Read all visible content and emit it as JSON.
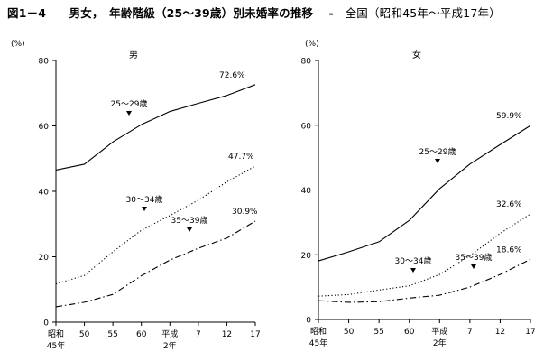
{
  "figure": {
    "title": "図1－4　　男女，　年齢階級（25～39歳）別未婚率の推移　 -　",
    "subtitle": "全国（昭和45年～平成17年）"
  },
  "chart_data": [
    {
      "type": "line",
      "title": "男",
      "ylabel": "(%)",
      "ylim": [
        0,
        80
      ],
      "yticks": [
        0,
        20,
        40,
        60,
        80
      ],
      "xticks": [
        {
          "x": 1970,
          "label": "昭和",
          "label2": "45年"
        },
        {
          "x": 1975,
          "label": "50",
          "label2": ""
        },
        {
          "x": 1980,
          "label": "55",
          "label2": ""
        },
        {
          "x": 1985,
          "label": "60",
          "label2": ""
        },
        {
          "x": 1990,
          "label": "平成",
          "label2": "2年"
        },
        {
          "x": 1995,
          "label": "7",
          "label2": ""
        },
        {
          "x": 2000,
          "label": "12",
          "label2": ""
        },
        {
          "x": 2005,
          "label": "17",
          "label2": ""
        }
      ],
      "x": [
        1970,
        1975,
        1980,
        1985,
        1990,
        1995,
        2000,
        2005
      ],
      "series": [
        {
          "name": "25～29歳",
          "style": "solid",
          "values": [
            46.5,
            48.3,
            55.1,
            60.4,
            64.4,
            66.9,
            69.3,
            72.6
          ],
          "end_label": "72.6%"
        },
        {
          "name": "30～34歳",
          "style": "dotted",
          "values": [
            11.7,
            14.3,
            21.5,
            28.1,
            32.6,
            37.3,
            42.9,
            47.7
          ],
          "end_label": "47.7%"
        },
        {
          "name": "35～39歳",
          "style": "dashdot",
          "values": [
            4.7,
            6.1,
            8.5,
            14.2,
            19.0,
            22.6,
            25.7,
            30.9
          ],
          "end_label": "30.9%"
        }
      ]
    },
    {
      "type": "line",
      "title": "女",
      "ylabel": "(%)",
      "ylim": [
        0,
        80
      ],
      "yticks": [
        0,
        20,
        40,
        60,
        80
      ],
      "xticks": [
        {
          "x": 1970,
          "label": "昭和",
          "label2": "45年"
        },
        {
          "x": 1975,
          "label": "50",
          "label2": ""
        },
        {
          "x": 1980,
          "label": "55",
          "label2": ""
        },
        {
          "x": 1985,
          "label": "60",
          "label2": ""
        },
        {
          "x": 1990,
          "label": "平成",
          "label2": "2年"
        },
        {
          "x": 1995,
          "label": "7",
          "label2": ""
        },
        {
          "x": 2000,
          "label": "12",
          "label2": ""
        },
        {
          "x": 2005,
          "label": "17",
          "label2": ""
        }
      ],
      "x": [
        1970,
        1975,
        1980,
        1985,
        1990,
        1995,
        2000,
        2005
      ],
      "series": [
        {
          "name": "25～29歳",
          "style": "solid",
          "values": [
            18.1,
            20.9,
            24.0,
            30.6,
            40.4,
            48.0,
            54.0,
            59.9
          ],
          "end_label": "59.9%"
        },
        {
          "name": "30～34歳",
          "style": "dotted",
          "values": [
            7.2,
            7.7,
            9.1,
            10.4,
            13.9,
            19.7,
            26.6,
            32.6
          ],
          "end_label": "32.6%"
        },
        {
          "name": "35～39歳",
          "style": "dashdot",
          "values": [
            5.8,
            5.3,
            5.5,
            6.6,
            7.5,
            10.0,
            13.9,
            18.6
          ],
          "end_label": "18.6%"
        }
      ]
    }
  ]
}
